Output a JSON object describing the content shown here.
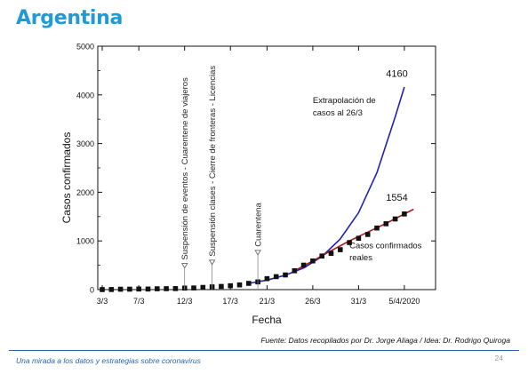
{
  "slide": {
    "title": "Argentina",
    "source": "Fuente: Datos recopilados por Dr. Jorge Aliaga / Idea: Dr. Rodrigo Quiroga",
    "footer": "Una mirada a los datos y estrategias sobre coronavirus",
    "page_number": "24"
  },
  "chart_data": {
    "type": "scatter",
    "xlabel": "Fecha",
    "ylabel": "Casos confirmados",
    "ylim": [
      0,
      5000
    ],
    "yticks": [
      0,
      1000,
      2000,
      3000,
      4000,
      5000
    ],
    "xlim_day": [
      0,
      35
    ],
    "xticks": [
      {
        "day": 0,
        "label": "3/3"
      },
      {
        "day": 4,
        "label": "7/3"
      },
      {
        "day": 9,
        "label": "12/3"
      },
      {
        "day": 14,
        "label": "17/3"
      },
      {
        "day": 18,
        "label": "21/3"
      },
      {
        "day": 23,
        "label": "26/3"
      },
      {
        "day": 28,
        "label": "31/3"
      },
      {
        "day": 33,
        "label": "5/4/2020"
      }
    ],
    "series": [
      {
        "name": "Casos confirmados reales",
        "kind": "markers",
        "color": "#111111",
        "x_day": [
          0,
          1,
          2,
          3,
          4,
          5,
          6,
          7,
          8,
          9,
          10,
          11,
          12,
          13,
          14,
          15,
          16,
          17,
          18,
          19,
          20,
          21,
          22,
          23,
          24,
          25,
          26,
          27,
          28,
          29,
          30,
          31,
          32,
          33
        ],
        "y": [
          1,
          2,
          8,
          9,
          12,
          12,
          17,
          19,
          21,
          31,
          34,
          45,
          56,
          65,
          79,
          97,
          128,
          158,
          225,
          266,
          301,
          387,
          502,
          589,
          690,
          745,
          820,
          966,
          1054,
          1133,
          1265,
          1353,
          1451,
          1554
        ]
      },
      {
        "name": "Extrapolación de casos al 26/3",
        "kind": "line",
        "color": "#2020b8",
        "x_day": [
          16,
          18,
          20,
          22,
          24,
          26,
          28,
          30,
          32,
          33
        ],
        "y": [
          128,
          195,
          295,
          445,
          680,
          1040,
          1580,
          2400,
          3550,
          4160
        ]
      },
      {
        "name": "",
        "kind": "line",
        "color": "#b01818",
        "x_day": [
          21,
          23,
          25,
          27,
          29,
          31,
          33,
          34
        ],
        "y": [
          387,
          589,
          800,
          1000,
          1180,
          1360,
          1554,
          1650
        ]
      }
    ],
    "annotations": [
      {
        "text": "4160",
        "x_day": 31,
        "y": 4370
      },
      {
        "text": "Extrapolación de",
        "x_day": 23,
        "y": 3830
      },
      {
        "text": "casos al 26/3",
        "x_day": 23,
        "y": 3580
      },
      {
        "text": "1554",
        "x_day": 31,
        "y": 1825
      },
      {
        "text": "Casos confirmados",
        "x_day": 27,
        "y": 850
      },
      {
        "text": "reales",
        "x_day": 27,
        "y": 600
      }
    ],
    "events": [
      {
        "day": 9,
        "y": 500,
        "label": "Suspensión de eventos - Cuarentene de viajeros"
      },
      {
        "day": 12,
        "y": 570,
        "label": "Suspensión clases - Cierre de fronteras - Licencias"
      },
      {
        "day": 17,
        "y": 770,
        "label": "Cuarentena"
      }
    ]
  }
}
